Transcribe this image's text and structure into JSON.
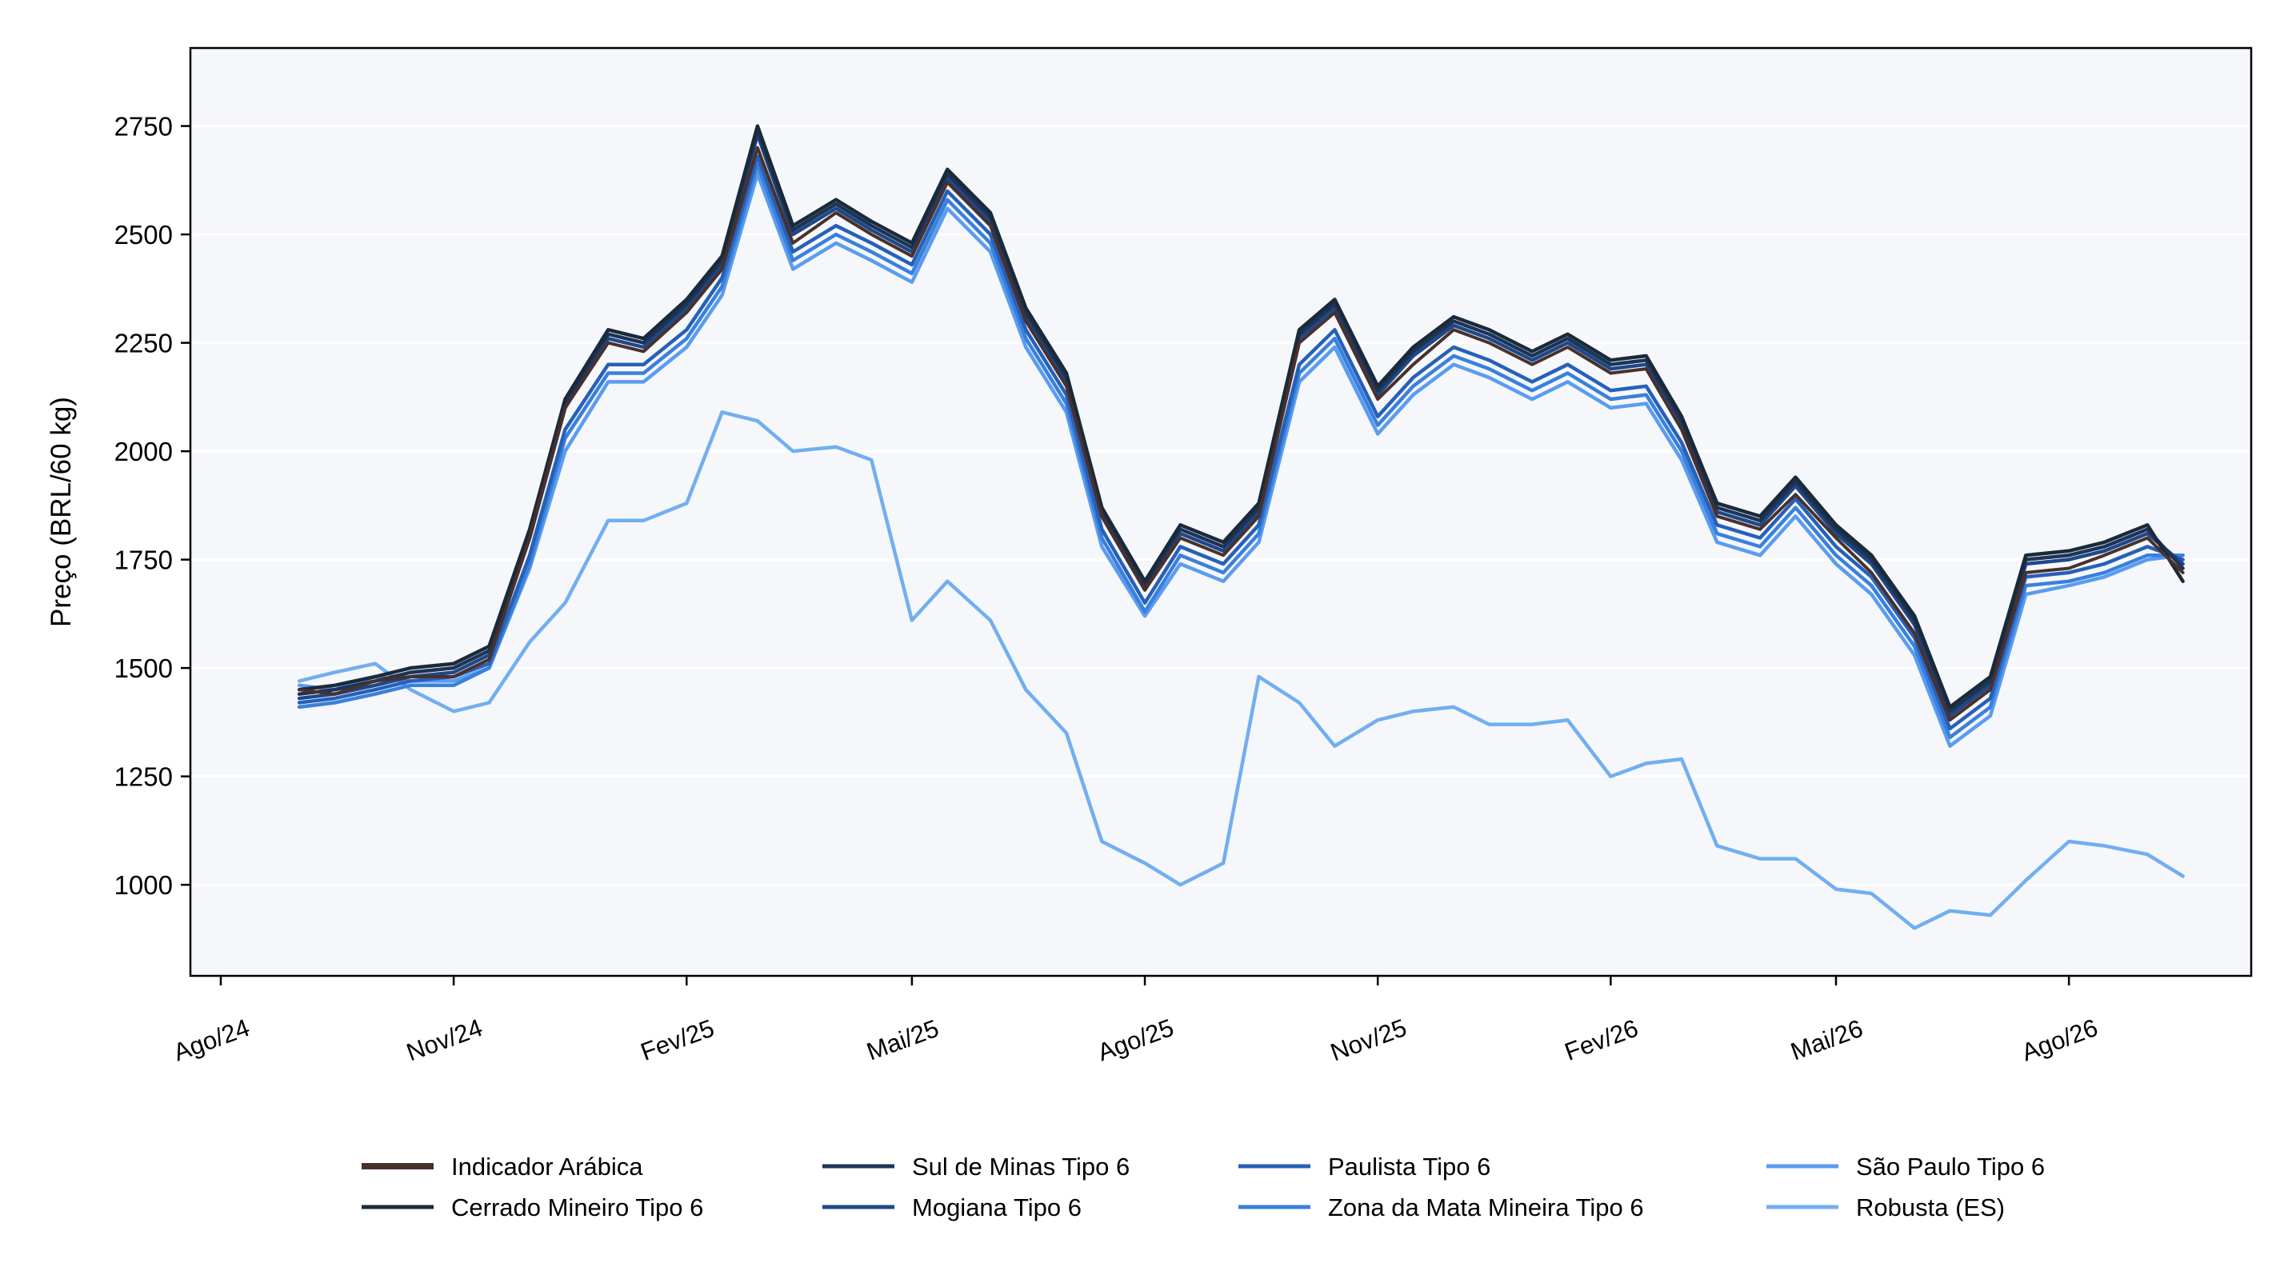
{
  "chart_data": {
    "type": "line",
    "title": "",
    "xlabel": "",
    "ylabel": "Preço (BRL/60 kg)",
    "x_ticks": [
      "Ago/24",
      "Nov/24",
      "Fev/25",
      "Mai/25",
      "Ago/25",
      "Nov/25",
      "Fev/26",
      "Mai/26",
      "Ago/26"
    ],
    "x_tick_dates": [
      "2024-08-01",
      "2024-11-01",
      "2025-02-01",
      "2025-05-01",
      "2025-08-01",
      "2025-11-01",
      "2026-02-01",
      "2026-05-01",
      "2026-08-01"
    ],
    "xlim": [
      "2024-07-20",
      "2026-10-12"
    ],
    "ylim": [
      790,
      2930
    ],
    "y_ticks": [
      1000,
      1250,
      1500,
      1750,
      2000,
      2250,
      2500,
      2750
    ],
    "grid": "horizontal",
    "legend_position": "bottom",
    "background_color": "#f5f7fb",
    "x": [
      "2024-09-01",
      "2024-09-15",
      "2024-10-01",
      "2024-10-15",
      "2024-11-01",
      "2024-11-15",
      "2024-12-01",
      "2024-12-15",
      "2025-01-01",
      "2025-01-15",
      "2025-02-01",
      "2025-02-15",
      "2025-03-01",
      "2025-03-15",
      "2025-04-01",
      "2025-04-15",
      "2025-05-01",
      "2025-05-15",
      "2025-06-01",
      "2025-06-15",
      "2025-07-01",
      "2025-07-15",
      "2025-08-01",
      "2025-08-15",
      "2025-09-01",
      "2025-09-15",
      "2025-10-01",
      "2025-10-15",
      "2025-11-01",
      "2025-11-15",
      "2025-12-01",
      "2025-12-15",
      "2026-01-01",
      "2026-01-15",
      "2026-02-01",
      "2026-02-15",
      "2026-03-01",
      "2026-03-15",
      "2026-04-01",
      "2026-04-15",
      "2026-05-01",
      "2026-05-15",
      "2026-06-01",
      "2026-06-15",
      "2026-07-01",
      "2026-07-15",
      "2026-08-01",
      "2026-08-15",
      "2026-09-01",
      "2026-09-15"
    ],
    "series": [
      {
        "name": "Indicador Arábica",
        "color": "#4a302b",
        "values": [
          1450,
          1440,
          1470,
          1480,
          1480,
          1520,
          1800,
          2100,
          2250,
          2230,
          2320,
          2420,
          2700,
          2480,
          2550,
          2500,
          2450,
          2620,
          2520,
          2300,
          2150,
          1850,
          1680,
          1800,
          1760,
          1850,
          2250,
          2320,
          2120,
          2200,
          2280,
          2250,
          2200,
          2240,
          2180,
          2190,
          2050,
          1850,
          1820,
          1900,
          1800,
          1720,
          1580,
          1380,
          1450,
          1720,
          1730,
          1760,
          1800,
          1720
        ]
      },
      {
        "name": "Cerrado Mineiro Tipo 6",
        "color": "#1a2a3a",
        "values": [
          1450,
          1460,
          1480,
          1500,
          1510,
          1550,
          1820,
          2120,
          2280,
          2260,
          2350,
          2450,
          2750,
          2520,
          2580,
          2530,
          2480,
          2650,
          2550,
          2330,
          2180,
          1870,
          1700,
          1830,
          1790,
          1880,
          2280,
          2350,
          2150,
          2240,
          2310,
          2280,
          2230,
          2270,
          2210,
          2220,
          2080,
          1880,
          1850,
          1940,
          1830,
          1760,
          1620,
          1410,
          1480,
          1760,
          1770,
          1790,
          1830,
          1700
        ]
      },
      {
        "name": "Sul de Minas Tipo 6",
        "color": "#1c3458",
        "values": [
          1440,
          1450,
          1470,
          1490,
          1500,
          1540,
          1810,
          2110,
          2270,
          2250,
          2340,
          2440,
          2740,
          2510,
          2570,
          2520,
          2470,
          2640,
          2540,
          2320,
          2170,
          1860,
          1690,
          1820,
          1780,
          1870,
          2270,
          2340,
          2140,
          2230,
          2300,
          2270,
          2220,
          2260,
          2200,
          2210,
          2070,
          1870,
          1840,
          1930,
          1820,
          1750,
          1610,
          1400,
          1470,
          1750,
          1760,
          1780,
          1820,
          1730
        ]
      },
      {
        "name": "Mogiana Tipo 6",
        "color": "#1e4888",
        "values": [
          1430,
          1440,
          1460,
          1480,
          1490,
          1530,
          1800,
          2100,
          2260,
          2240,
          2330,
          2430,
          2730,
          2500,
          2560,
          2510,
          2460,
          2630,
          2530,
          2310,
          2160,
          1850,
          1680,
          1810,
          1770,
          1860,
          2260,
          2330,
          2130,
          2220,
          2290,
          2260,
          2210,
          2250,
          2190,
          2200,
          2060,
          1860,
          1830,
          1920,
          1810,
          1740,
          1600,
          1390,
          1460,
          1740,
          1750,
          1770,
          1810,
          1740
        ]
      },
      {
        "name": "Paulista Tipo 6",
        "color": "#2660b8",
        "values": [
          1420,
          1430,
          1450,
          1470,
          1480,
          1510,
          1760,
          2050,
          2200,
          2200,
          2280,
          2400,
          2680,
          2460,
          2520,
          2480,
          2430,
          2600,
          2500,
          2280,
          2130,
          1820,
          1650,
          1780,
          1740,
          1830,
          2200,
          2280,
          2080,
          2170,
          2240,
          2210,
          2160,
          2200,
          2140,
          2150,
          2020,
          1830,
          1800,
          1890,
          1780,
          1710,
          1570,
          1360,
          1430,
          1710,
          1720,
          1740,
          1780,
          1750
        ]
      },
      {
        "name": "Zona da Mata Mineira Tipo 6",
        "color": "#3a80dc",
        "values": [
          1410,
          1420,
          1440,
          1460,
          1460,
          1500,
          1740,
          2030,
          2180,
          2180,
          2260,
          2380,
          2660,
          2440,
          2500,
          2460,
          2410,
          2580,
          2480,
          2260,
          2110,
          1800,
          1630,
          1760,
          1720,
          1810,
          2180,
          2260,
          2060,
          2150,
          2220,
          2190,
          2140,
          2180,
          2120,
          2130,
          2000,
          1810,
          1780,
          1870,
          1760,
          1690,
          1550,
          1340,
          1410,
          1690,
          1700,
          1720,
          1760,
          1760
        ]
      },
      {
        "name": "São Paulo Tipo 6",
        "color": "#5a9cf0",
        "values": [
          1460,
          1450,
          1480,
          1470,
          1470,
          1500,
          1730,
          2000,
          2160,
          2160,
          2240,
          2360,
          2640,
          2420,
          2480,
          2440,
          2390,
          2560,
          2460,
          2240,
          2090,
          1780,
          1620,
          1740,
          1700,
          1790,
          2160,
          2240,
          2040,
          2130,
          2200,
          2170,
          2120,
          2160,
          2100,
          2110,
          1980,
          1790,
          1760,
          1850,
          1740,
          1670,
          1530,
          1320,
          1390,
          1670,
          1690,
          1710,
          1750,
          1760
        ]
      },
      {
        "name": "Robusta (ES)",
        "color": "#72aef0",
        "values": [
          1470,
          1490,
          1510,
          1450,
          1400,
          1420,
          1560,
          1650,
          1840,
          1840,
          1880,
          2090,
          2070,
          2000,
          2010,
          1980,
          1610,
          1700,
          1610,
          1450,
          1350,
          1100,
          1050,
          1000,
          1050,
          1480,
          1420,
          1320,
          1380,
          1400,
          1410,
          1370,
          1370,
          1380,
          1250,
          1280,
          1290,
          1090,
          1060,
          1060,
          990,
          980,
          900,
          940,
          930,
          1010,
          1100,
          1090,
          1070,
          1020
        ]
      }
    ]
  }
}
